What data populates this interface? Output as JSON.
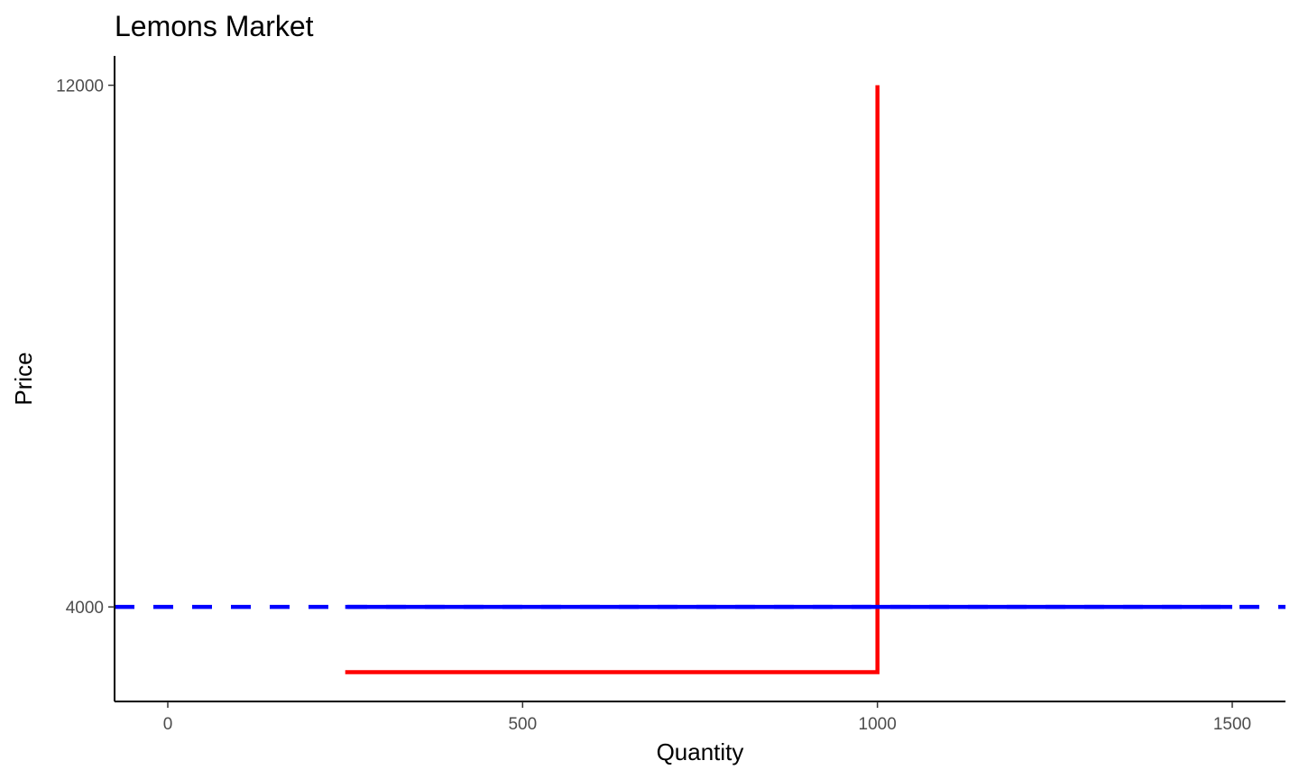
{
  "chart_data": {
    "type": "line",
    "title": "Lemons Market",
    "xlabel": "Quantity",
    "ylabel": "Price",
    "xlim": [
      -75,
      1575
    ],
    "ylim": [
      2550,
      12450
    ],
    "x_ticks": [
      0,
      500,
      1000,
      1500
    ],
    "y_ticks": [
      4000,
      12000
    ],
    "grid": false,
    "legend": "none",
    "series": [
      {
        "color": "#FF0000",
        "style": "solid",
        "points": [
          [
            250,
            3000
          ],
          [
            1000,
            3000
          ],
          [
            1000,
            12000
          ]
        ]
      },
      {
        "color": "#0000FF",
        "style": "solid",
        "points": [
          [
            250,
            4000
          ],
          [
            1500,
            4000
          ]
        ]
      }
    ],
    "reference_lines": [
      {
        "orientation": "horizontal",
        "y": 4000,
        "color": "#0000FF",
        "style": "dashed"
      }
    ]
  }
}
